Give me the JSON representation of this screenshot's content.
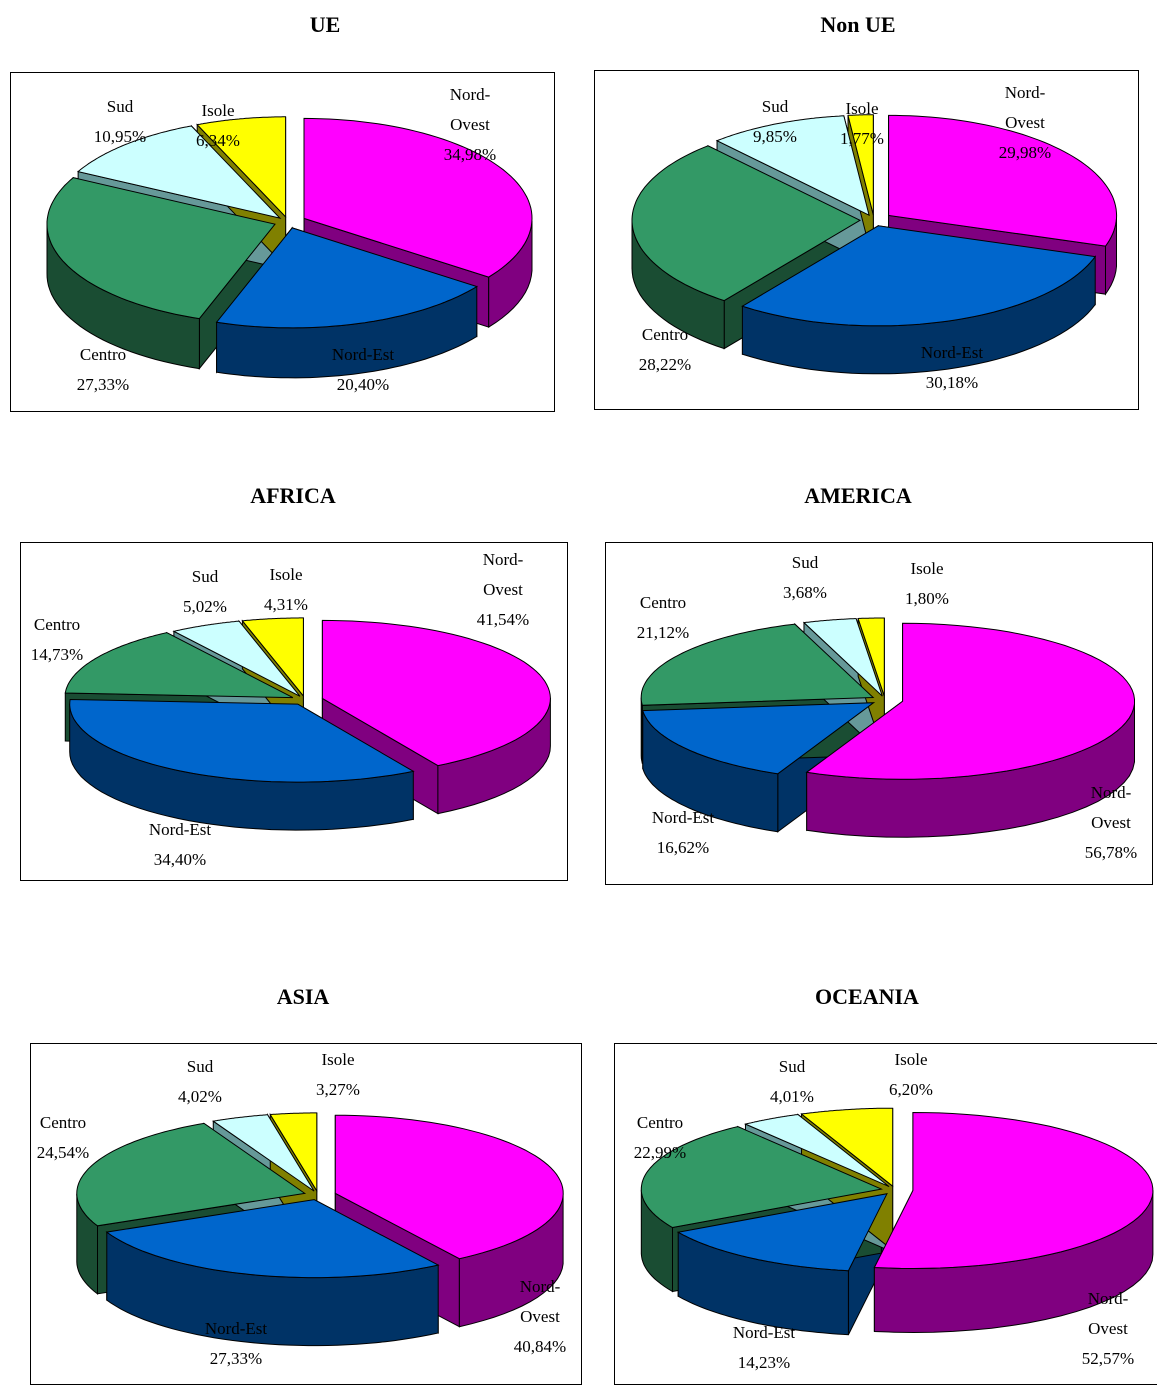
{
  "chart_data": [
    {
      "type": "pie",
      "title": "UE",
      "slices": [
        {
          "key": "nordovest",
          "name": "Nord-\nOvest",
          "pct": "34,98%",
          "value": 34.98
        },
        {
          "key": "nordest",
          "name": "Nord-Est",
          "pct": "20,40%",
          "value": 20.4
        },
        {
          "key": "centro",
          "name": "Centro",
          "pct": "27,33%",
          "value": 27.33
        },
        {
          "key": "sud",
          "name": "Sud",
          "pct": "10,95%",
          "value": 10.95
        },
        {
          "key": "isole",
          "name": "Isole",
          "pct": "6,34%",
          "value": 6.34
        }
      ]
    },
    {
      "type": "pie",
      "title": "Non UE",
      "slices": [
        {
          "key": "nordovest",
          "name": "Nord-\nOvest",
          "pct": "29,98%",
          "value": 29.98
        },
        {
          "key": "nordest",
          "name": "Nord-Est",
          "pct": "30,18%",
          "value": 30.18
        },
        {
          "key": "centro",
          "name": "Centro",
          "pct": "28,22%",
          "value": 28.22
        },
        {
          "key": "sud",
          "name": "Sud",
          "pct": "9,85%",
          "value": 9.85
        },
        {
          "key": "isole",
          "name": "Isole",
          "pct": "1,77%",
          "value": 1.77
        }
      ]
    },
    {
      "type": "pie",
      "title": "AFRICA",
      "slices": [
        {
          "key": "nordovest",
          "name": "Nord-\nOvest",
          "pct": "41,54%",
          "value": 41.54
        },
        {
          "key": "nordest",
          "name": "Nord-Est",
          "pct": "34,40%",
          "value": 34.4
        },
        {
          "key": "centro",
          "name": "Centro",
          "pct": "14,73%",
          "value": 14.73
        },
        {
          "key": "sud",
          "name": "Sud",
          "pct": "5,02%",
          "value": 5.02
        },
        {
          "key": "isole",
          "name": "Isole",
          "pct": "4,31%",
          "value": 4.31
        }
      ]
    },
    {
      "type": "pie",
      "title": "AMERICA",
      "slices": [
        {
          "key": "nordovest",
          "name": "Nord-\nOvest",
          "pct": "56,78%",
          "value": 56.78
        },
        {
          "key": "nordest",
          "name": "Nord-Est",
          "pct": "16,62%",
          "value": 16.62
        },
        {
          "key": "centro",
          "name": "Centro",
          "pct": "21,12%",
          "value": 21.12
        },
        {
          "key": "sud",
          "name": "Sud",
          "pct": "3,68%",
          "value": 3.68
        },
        {
          "key": "isole",
          "name": "Isole",
          "pct": "1,80%",
          "value": 1.8
        }
      ]
    },
    {
      "type": "pie",
      "title": "ASIA",
      "slices": [
        {
          "key": "nordovest",
          "name": "Nord-\nOvest",
          "pct": "40,84%",
          "value": 40.84
        },
        {
          "key": "nordest",
          "name": "Nord-Est",
          "pct": "27,33%",
          "value": 27.33
        },
        {
          "key": "centro",
          "name": "Centro",
          "pct": "24,54%",
          "value": 24.54
        },
        {
          "key": "sud",
          "name": "Sud",
          "pct": "4,02%",
          "value": 4.02
        },
        {
          "key": "isole",
          "name": "Isole",
          "pct": "3,27%",
          "value": 3.27
        }
      ]
    },
    {
      "type": "pie",
      "title": "OCEANIA",
      "slices": [
        {
          "key": "nordovest",
          "name": "Nord-\nOvest",
          "pct": "52,57%",
          "value": 52.57
        },
        {
          "key": "nordest",
          "name": "Nord-Est",
          "pct": "14,23%",
          "value": 14.23
        },
        {
          "key": "centro",
          "name": "Centro",
          "pct": "22,99%",
          "value": 22.99
        },
        {
          "key": "sud",
          "name": "Sud",
          "pct": "4,01%",
          "value": 4.01
        },
        {
          "key": "isole",
          "name": "Isole",
          "pct": "6,20%",
          "value": 6.2
        }
      ]
    }
  ],
  "colors": {
    "nordovest": {
      "top": "#ff00ff",
      "side": "#800080"
    },
    "nordest": {
      "top": "#0066cc",
      "side": "#003366"
    },
    "centro": {
      "top": "#339966",
      "side": "#1a4d33"
    },
    "sud": {
      "top": "#ccffff",
      "side": "#669999"
    },
    "isole": {
      "top": "#ffff00",
      "side": "#808000"
    }
  }
}
